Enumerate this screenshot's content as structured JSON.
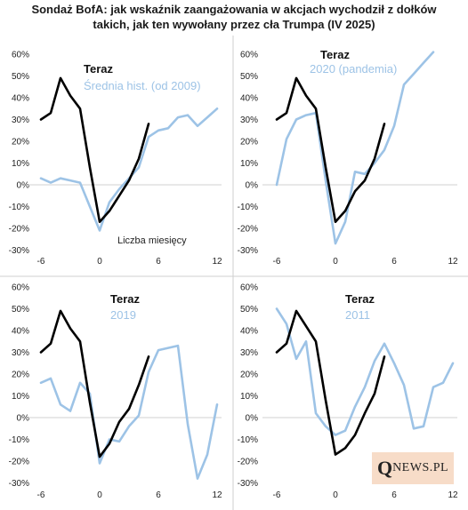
{
  "title": {
    "line1": "Sondaż BofA: jak wskaźnik zaangażowania w akcjach wychodził z dołków",
    "line2": "takich, jak ten wywołany przez cła Trumpa (IV 2025)"
  },
  "logo": {
    "q": "Q",
    "rest": "NEWS.PL"
  },
  "colors": {
    "teraz": "#000000",
    "historical": "#9dc3e6",
    "axis": "#d0d0d0"
  },
  "chart_data": [
    {
      "type": "line",
      "title": "",
      "x_ticks": [
        -6,
        0,
        6,
        12
      ],
      "y_ticks": [
        "60%",
        "50%",
        "40%",
        "30%",
        "20%",
        "10%",
        "0%",
        "-10%",
        "-20%",
        "-30%"
      ],
      "xlim": [
        -7,
        12
      ],
      "ylim": [
        -30,
        60
      ],
      "note": "Liczba miesięcy",
      "series": [
        {
          "name": "Teraz",
          "x": [
            -6,
            -5,
            -4,
            -3,
            -2,
            -1,
            0,
            1,
            2,
            3,
            4,
            5
          ],
          "y": [
            30,
            33,
            49,
            41,
            35,
            8,
            -17,
            -12,
            -5,
            2,
            12,
            28
          ]
        },
        {
          "name": "Średnia hist. (od 2009)",
          "x": [
            -6,
            -5,
            -4,
            -3,
            -2,
            -1,
            0,
            1,
            2,
            3,
            4,
            5,
            6,
            7,
            8,
            9,
            10,
            11,
            12
          ],
          "y": [
            3,
            1,
            3,
            2,
            1,
            -10,
            -21,
            -8,
            -2,
            3,
            8,
            22,
            25,
            26,
            31,
            32,
            27,
            31,
            35
          ]
        }
      ]
    },
    {
      "type": "line",
      "title": "",
      "x_ticks": [
        -6,
        0,
        6,
        12
      ],
      "y_ticks": [
        "60%",
        "50%",
        "40%",
        "30%",
        "20%",
        "10%",
        "0%",
        "-10%",
        "-20%",
        "-30%"
      ],
      "xlim": [
        -7,
        12
      ],
      "ylim": [
        -30,
        60
      ],
      "series": [
        {
          "name": "Teraz",
          "x": [
            -6,
            -5,
            -4,
            -3,
            -2,
            -1,
            0,
            1,
            2,
            3,
            4,
            5
          ],
          "y": [
            30,
            33,
            49,
            41,
            35,
            8,
            -17,
            -12,
            -3,
            2,
            12,
            28
          ]
        },
        {
          "name": "2020 (pandemia)",
          "x": [
            -6,
            -5,
            -4,
            -3,
            -2,
            -1,
            0,
            1,
            2,
            3,
            4,
            5,
            6,
            7,
            8,
            9,
            10
          ],
          "y": [
            0,
            21,
            30,
            32,
            33,
            2,
            -27,
            -17,
            6,
            5,
            10,
            16,
            27,
            46,
            51,
            56,
            61
          ]
        }
      ]
    },
    {
      "type": "line",
      "title": "",
      "x_ticks": [
        -6,
        0,
        6,
        12
      ],
      "y_ticks": [
        "60%",
        "50%",
        "40%",
        "30%",
        "20%",
        "10%",
        "0%",
        "-10%",
        "-20%",
        "-30%"
      ],
      "xlim": [
        -7,
        12
      ],
      "ylim": [
        -30,
        60
      ],
      "series": [
        {
          "name": "Teraz",
          "x": [
            -6,
            -5,
            -4,
            -3,
            -2,
            -1,
            0,
            1,
            2,
            3,
            4,
            5
          ],
          "y": [
            30,
            34,
            49,
            41,
            35,
            7,
            -18,
            -12,
            -2,
            4,
            15,
            28
          ]
        },
        {
          "name": "2019",
          "x": [
            -6,
            -5,
            -4,
            -3,
            -2,
            -1,
            0,
            1,
            2,
            3,
            4,
            5,
            6,
            7,
            8,
            9,
            10,
            11,
            12
          ],
          "y": [
            16,
            18,
            6,
            3,
            16,
            11,
            -21,
            -10,
            -11,
            -4,
            1,
            21,
            31,
            32,
            33,
            -3,
            -28,
            -17,
            6
          ]
        }
      ]
    },
    {
      "type": "line",
      "title": "",
      "x_ticks": [
        -6,
        0,
        6,
        12
      ],
      "y_ticks": [
        "60%",
        "50%",
        "40%",
        "30%",
        "20%",
        "10%",
        "0%",
        "-10%",
        "-20%",
        "-30%"
      ],
      "xlim": [
        -7,
        12
      ],
      "ylim": [
        -30,
        60
      ],
      "series": [
        {
          "name": "Teraz",
          "x": [
            -6,
            -5,
            -4,
            -3,
            -2,
            -1,
            0,
            1,
            2,
            3,
            4,
            5
          ],
          "y": [
            30,
            34,
            49,
            42,
            35,
            8,
            -17,
            -14,
            -8,
            2,
            11,
            28
          ]
        },
        {
          "name": "2011",
          "x": [
            -6,
            -5,
            -4,
            -3,
            -2,
            -1,
            0,
            1,
            2,
            3,
            4,
            5,
            6,
            7,
            8,
            9,
            10,
            11,
            12
          ],
          "y": [
            50,
            43,
            27,
            35,
            2,
            -4,
            -8,
            -6,
            5,
            14,
            26,
            34,
            25,
            15,
            -5,
            -4,
            14,
            16,
            25
          ]
        }
      ]
    }
  ]
}
